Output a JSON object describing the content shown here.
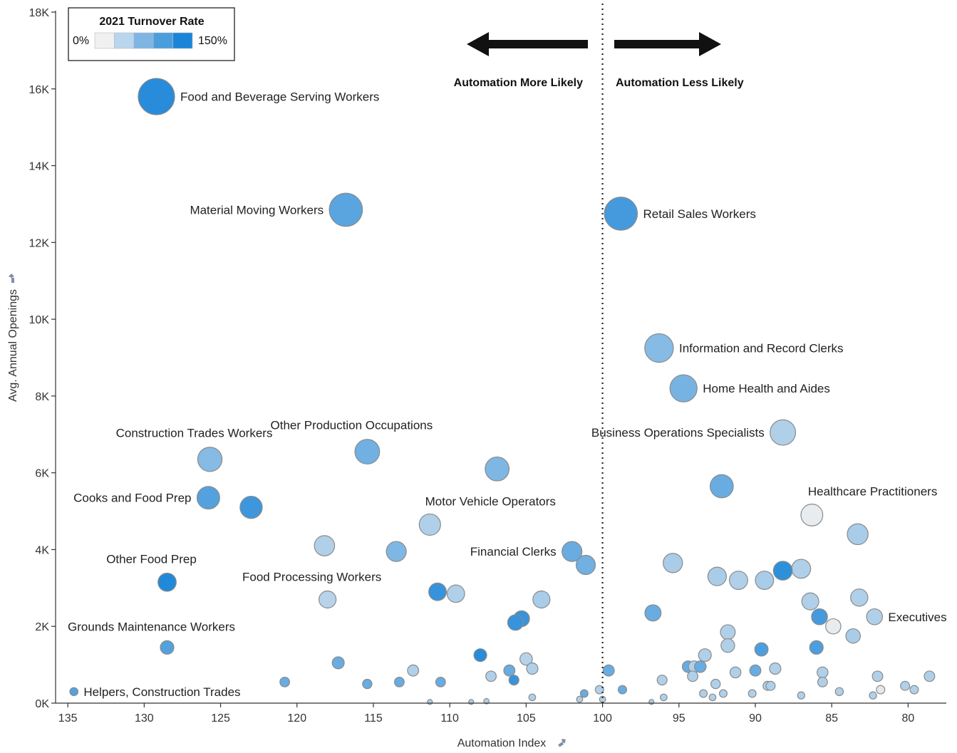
{
  "chart_data": {
    "type": "scatter",
    "subtype": "bubble",
    "xlabel": "Automation Index",
    "ylabel": "Avg. Annual Openings",
    "x_reversed": true,
    "xlim": [
      135.8,
      77.5
    ],
    "ylim": [
      0,
      18000
    ],
    "x_ticks": [
      {
        "value": 135,
        "label": "135"
      },
      {
        "value": 130,
        "label": "130"
      },
      {
        "value": 125,
        "label": "125"
      },
      {
        "value": 120,
        "label": "120"
      },
      {
        "value": 115,
        "label": "115"
      },
      {
        "value": 110,
        "label": "110"
      },
      {
        "value": 105,
        "label": "105"
      },
      {
        "value": 100,
        "label": "100"
      },
      {
        "value": 95,
        "label": "95"
      },
      {
        "value": 90,
        "label": "90"
      },
      {
        "value": 85,
        "label": "85"
      },
      {
        "value": 80,
        "label": "80"
      }
    ],
    "y_ticks": [
      {
        "value": 0,
        "label": "0K"
      },
      {
        "value": 2000,
        "label": "2K"
      },
      {
        "value": 4000,
        "label": "4K"
      },
      {
        "value": 6000,
        "label": "6K"
      },
      {
        "value": 8000,
        "label": "8K"
      },
      {
        "value": 10000,
        "label": "10K"
      },
      {
        "value": 12000,
        "label": "12K"
      },
      {
        "value": 14000,
        "label": "14K"
      },
      {
        "value": 16000,
        "label": "16K"
      },
      {
        "value": 18000,
        "label": "18K"
      }
    ],
    "grid": false,
    "reference_line": {
      "x": 100,
      "style": "dotted"
    },
    "annotations": {
      "left_arrow_label": "Automation More Likely",
      "right_arrow_label": "Automation Less Likely"
    },
    "legend": {
      "title": "2021 Turnover Rate",
      "min_label": "0%",
      "max_label": "150%",
      "placement": "top-left",
      "color_steps": [
        "#f0f0f0",
        "#b9d6ee",
        "#7fb5e3",
        "#4b9ddc",
        "#1a85d8"
      ]
    },
    "size_encoding": "Avg. Annual Openings",
    "color_encoding": "2021 Turnover Rate",
    "points": [
      {
        "label": "Food and Beverage Serving Workers",
        "x": 129.2,
        "y": 15800,
        "turnover": 140,
        "label_side": "right"
      },
      {
        "label": "Material Moving Workers",
        "x": 116.8,
        "y": 12850,
        "turnover": 105,
        "label_side": "left"
      },
      {
        "label": "Retail Sales Workers",
        "x": 98.8,
        "y": 12750,
        "turnover": 120,
        "label_side": "right"
      },
      {
        "label": "Information and Record Clerks",
        "x": 96.3,
        "y": 9250,
        "turnover": 75,
        "label_side": "right"
      },
      {
        "label": "Home Health and Aides",
        "x": 94.7,
        "y": 8200,
        "turnover": 85,
        "label_side": "right"
      },
      {
        "label": "Business Operations Specialists",
        "x": 88.2,
        "y": 7050,
        "turnover": 45,
        "label_side": "left"
      },
      {
        "label": "Construction Trades Workers",
        "x": 125.7,
        "y": 6350,
        "turnover": 75,
        "label_side": "top"
      },
      {
        "label": "Other Production Occupations",
        "x": 115.4,
        "y": 6550,
        "turnover": 90,
        "label_side": "top"
      },
      {
        "label": "",
        "x": 106.9,
        "y": 6100,
        "turnover": 80
      },
      {
        "label": "",
        "x": 92.2,
        "y": 5650,
        "turnover": 95
      },
      {
        "label": "Cooks and Food Prep",
        "x": 125.8,
        "y": 5350,
        "turnover": 110,
        "label_side": "left"
      },
      {
        "label": "",
        "x": 123.0,
        "y": 5100,
        "turnover": 125
      },
      {
        "label": "Motor Vehicle Operators",
        "x": 111.3,
        "y": 4650,
        "turnover": 45,
        "label_side": "top-right"
      },
      {
        "label": "Healthcare Practitioners",
        "x": 86.3,
        "y": 4900,
        "turnover": 5,
        "label_side": "top-right"
      },
      {
        "label": "",
        "x": 83.3,
        "y": 4400,
        "turnover": 50
      },
      {
        "label": "",
        "x": 118.2,
        "y": 4100,
        "turnover": 45
      },
      {
        "label": "",
        "x": 113.5,
        "y": 3950,
        "turnover": 80
      },
      {
        "label": "Financial Clerks",
        "x": 102.0,
        "y": 3950,
        "turnover": 95,
        "label_side": "left"
      },
      {
        "label": "",
        "x": 101.1,
        "y": 3600,
        "turnover": 90
      },
      {
        "label": "",
        "x": 95.4,
        "y": 3650,
        "turnover": 50
      },
      {
        "label": "",
        "x": 92.5,
        "y": 3300,
        "turnover": 50
      },
      {
        "label": "",
        "x": 91.1,
        "y": 3200,
        "turnover": 45
      },
      {
        "label": "",
        "x": 89.4,
        "y": 3200,
        "turnover": 50
      },
      {
        "label": "",
        "x": 88.2,
        "y": 3450,
        "turnover": 135
      },
      {
        "label": "",
        "x": 87.0,
        "y": 3500,
        "turnover": 45
      },
      {
        "label": "Other Food Prep",
        "x": 128.5,
        "y": 3150,
        "turnover": 145,
        "label_side": "top"
      },
      {
        "label": "Food Processing Workers",
        "x": 118.0,
        "y": 2700,
        "turnover": 40,
        "label_side": "top"
      },
      {
        "label": "",
        "x": 110.8,
        "y": 2900,
        "turnover": 130
      },
      {
        "label": "",
        "x": 109.6,
        "y": 2850,
        "turnover": 45
      },
      {
        "label": "",
        "x": 104.0,
        "y": 2700,
        "turnover": 50
      },
      {
        "label": "",
        "x": 83.2,
        "y": 2750,
        "turnover": 45
      },
      {
        "label": "",
        "x": 86.4,
        "y": 2650,
        "turnover": 45
      },
      {
        "label": "",
        "x": 96.7,
        "y": 2350,
        "turnover": 95
      },
      {
        "label": "",
        "x": 105.7,
        "y": 2100,
        "turnover": 130
      },
      {
        "label": "",
        "x": 105.3,
        "y": 2200,
        "turnover": 130
      },
      {
        "label": "Executives",
        "x": 82.2,
        "y": 2250,
        "turnover": 45,
        "label_side": "right"
      },
      {
        "label": "",
        "x": 85.8,
        "y": 2250,
        "turnover": 120
      },
      {
        "label": "",
        "x": 84.9,
        "y": 2000,
        "turnover": 5
      },
      {
        "label": "",
        "x": 83.6,
        "y": 1750,
        "turnover": 50
      },
      {
        "label": "Grounds Maintenance Workers",
        "x": 128.5,
        "y": 1450,
        "turnover": 110,
        "label_side": "top"
      },
      {
        "label": "",
        "x": 91.8,
        "y": 1850,
        "turnover": 45
      },
      {
        "label": "",
        "x": 91.8,
        "y": 1500,
        "turnover": 45
      },
      {
        "label": "",
        "x": 86.0,
        "y": 1450,
        "turnover": 115
      },
      {
        "label": "",
        "x": 89.6,
        "y": 1400,
        "turnover": 115
      },
      {
        "label": "",
        "x": 93.3,
        "y": 1250,
        "turnover": 45
      },
      {
        "label": "",
        "x": 108.0,
        "y": 1250,
        "turnover": 140
      },
      {
        "label": "",
        "x": 117.3,
        "y": 1050,
        "turnover": 95
      },
      {
        "label": "",
        "x": 105.0,
        "y": 1150,
        "turnover": 40
      },
      {
        "label": "",
        "x": 112.4,
        "y": 850,
        "turnover": 45
      },
      {
        "label": "",
        "x": 106.1,
        "y": 850,
        "turnover": 95
      },
      {
        "label": "",
        "x": 104.6,
        "y": 900,
        "turnover": 45
      },
      {
        "label": "",
        "x": 107.3,
        "y": 700,
        "turnover": 45
      },
      {
        "label": "",
        "x": 99.6,
        "y": 850,
        "turnover": 95
      },
      {
        "label": "",
        "x": 94.4,
        "y": 950,
        "turnover": 95
      },
      {
        "label": "",
        "x": 94.0,
        "y": 950,
        "turnover": 45
      },
      {
        "label": "",
        "x": 93.6,
        "y": 950,
        "turnover": 95
      },
      {
        "label": "",
        "x": 91.3,
        "y": 800,
        "turnover": 45
      },
      {
        "label": "",
        "x": 90.0,
        "y": 850,
        "turnover": 95
      },
      {
        "label": "",
        "x": 88.7,
        "y": 900,
        "turnover": 45
      },
      {
        "label": "",
        "x": 85.6,
        "y": 800,
        "turnover": 45
      },
      {
        "label": "",
        "x": 94.1,
        "y": 700,
        "turnover": 45
      },
      {
        "label": "",
        "x": 96.1,
        "y": 600,
        "turnover": 45
      },
      {
        "label": "",
        "x": 85.6,
        "y": 550,
        "turnover": 45
      },
      {
        "label": "",
        "x": 82.0,
        "y": 700,
        "turnover": 45
      },
      {
        "label": "",
        "x": 78.6,
        "y": 700,
        "turnover": 45
      },
      {
        "label": "",
        "x": 120.8,
        "y": 550,
        "turnover": 95
      },
      {
        "label": "",
        "x": 115.4,
        "y": 500,
        "turnover": 95
      },
      {
        "label": "",
        "x": 113.3,
        "y": 550,
        "turnover": 95
      },
      {
        "label": "",
        "x": 110.6,
        "y": 550,
        "turnover": 95
      },
      {
        "label": "",
        "x": 105.8,
        "y": 600,
        "turnover": 130
      },
      {
        "label": "",
        "x": 100.2,
        "y": 350,
        "turnover": 45
      },
      {
        "label": "",
        "x": 98.7,
        "y": 350,
        "turnover": 95
      },
      {
        "label": "",
        "x": 101.2,
        "y": 250,
        "turnover": 95
      },
      {
        "label": "",
        "x": 92.6,
        "y": 500,
        "turnover": 45
      },
      {
        "label": "",
        "x": 89.2,
        "y": 450,
        "turnover": 45
      },
      {
        "label": "",
        "x": 89.0,
        "y": 450,
        "turnover": 45
      },
      {
        "label": "",
        "x": 93.4,
        "y": 250,
        "turnover": 45
      },
      {
        "label": "",
        "x": 92.1,
        "y": 250,
        "turnover": 45
      },
      {
        "label": "",
        "x": 90.2,
        "y": 250,
        "turnover": 45
      },
      {
        "label": "",
        "x": 84.5,
        "y": 300,
        "turnover": 45
      },
      {
        "label": "",
        "x": 81.8,
        "y": 350,
        "turnover": 10
      },
      {
        "label": "",
        "x": 80.2,
        "y": 450,
        "turnover": 45
      },
      {
        "label": "",
        "x": 79.6,
        "y": 350,
        "turnover": 45
      },
      {
        "label": "",
        "x": 87.0,
        "y": 200,
        "turnover": 45
      },
      {
        "label": "",
        "x": 82.3,
        "y": 200,
        "turnover": 45
      },
      {
        "label": "",
        "x": 92.8,
        "y": 150,
        "turnover": 45
      },
      {
        "label": "",
        "x": 96.0,
        "y": 150,
        "turnover": 45
      },
      {
        "label": "",
        "x": 104.6,
        "y": 150,
        "turnover": 45
      },
      {
        "label": "",
        "x": 101.5,
        "y": 100,
        "turnover": 45
      },
      {
        "label": "",
        "x": 100.0,
        "y": 100,
        "turnover": 45
      },
      {
        "label": "",
        "x": 107.6,
        "y": 50,
        "turnover": 45
      },
      {
        "label": "",
        "x": 108.6,
        "y": 30,
        "turnover": 45
      },
      {
        "label": "",
        "x": 111.3,
        "y": 30,
        "turnover": 45
      },
      {
        "label": "",
        "x": 96.8,
        "y": 30,
        "turnover": 45
      },
      {
        "label": "Helpers, Construction Trades",
        "x": 134.6,
        "y": 300,
        "turnover": 110,
        "label_side": "right"
      }
    ]
  }
}
